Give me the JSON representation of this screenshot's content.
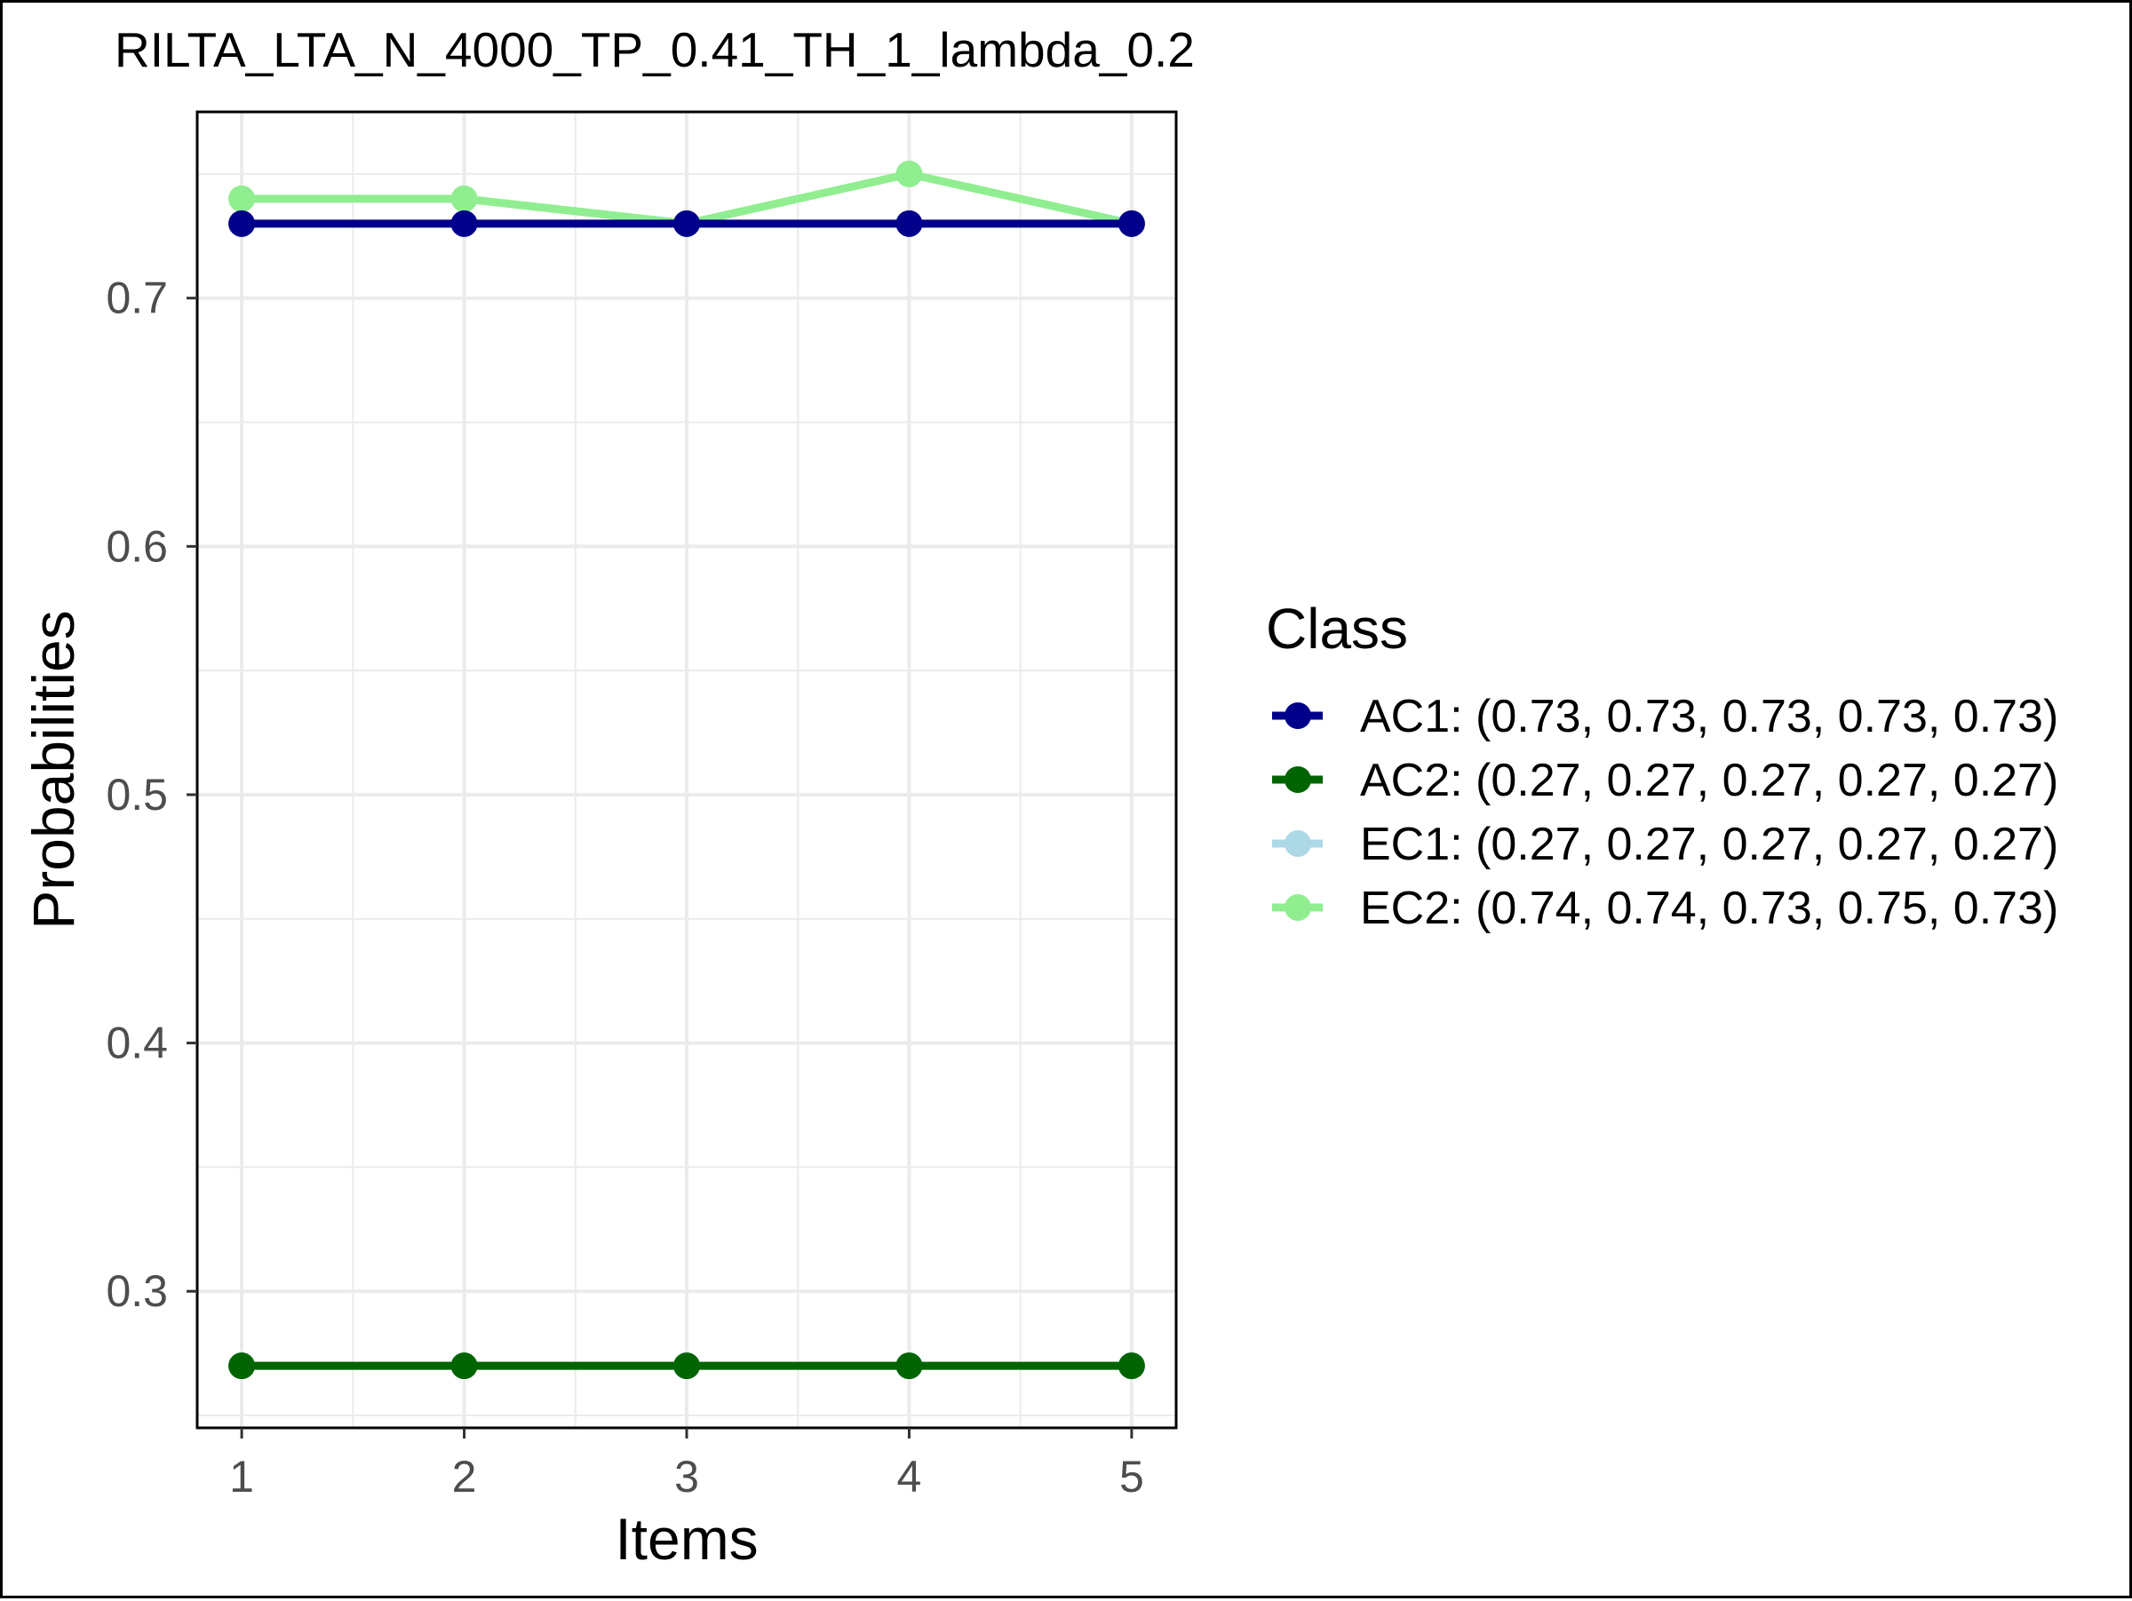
{
  "chart_data": {
    "type": "line",
    "title": "RILTA_LTA_N_4000_TP_0.41_TH_1_lambda_0.2",
    "xlabel": "Items",
    "ylabel": "Probabilities",
    "x": [
      1,
      2,
      3,
      4,
      5
    ],
    "xlim": [
      0.8,
      5.2
    ],
    "ylim": [
      0.245,
      0.775
    ],
    "yticks": [
      0.3,
      0.4,
      0.5,
      0.6,
      0.7
    ],
    "ytick_labels": [
      "0.3",
      "0.4",
      "0.5",
      "0.6",
      "0.7"
    ],
    "xtick_labels": [
      "1",
      "2",
      "3",
      "4",
      "5"
    ],
    "grid": true,
    "legend": {
      "title": "Class",
      "position": "right",
      "entries": [
        "AC1: (0.73, 0.73, 0.73, 0.73, 0.73)",
        "AC2: (0.27, 0.27, 0.27, 0.27, 0.27)",
        "EC1: (0.27, 0.27, 0.27, 0.27, 0.27)",
        "EC2: (0.74, 0.74, 0.73, 0.75, 0.73)"
      ]
    },
    "series": [
      {
        "name": "AC1",
        "values": [
          0.73,
          0.73,
          0.73,
          0.73,
          0.73
        ],
        "color": "#00008b"
      },
      {
        "name": "AC2",
        "values": [
          0.27,
          0.27,
          0.27,
          0.27,
          0.27
        ],
        "color": "#006400"
      },
      {
        "name": "EC1",
        "values": [
          0.27,
          0.27,
          0.27,
          0.27,
          0.27
        ],
        "color": "#add8e6"
      },
      {
        "name": "EC2",
        "values": [
          0.74,
          0.74,
          0.73,
          0.75,
          0.73
        ],
        "color": "#90ee90"
      }
    ],
    "draw_order": [
      3,
      2,
      0,
      1
    ]
  }
}
